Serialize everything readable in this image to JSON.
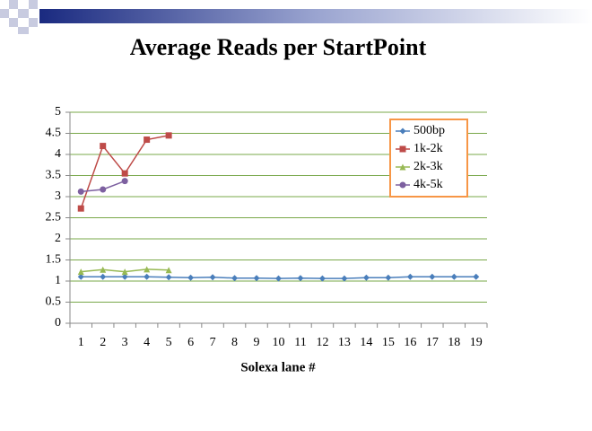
{
  "chart_data": {
    "type": "line",
    "title": "Average Reads per StartPoint",
    "x_label": "Solexa lane #",
    "categories": [
      1,
      2,
      3,
      4,
      5,
      6,
      7,
      8,
      9,
      10,
      11,
      12,
      13,
      14,
      15,
      16,
      17,
      18,
      19
    ],
    "ylim": [
      0,
      5
    ],
    "yticks": [
      0,
      0.5,
      1,
      1.5,
      2,
      2.5,
      3,
      3.5,
      4,
      4.5,
      5
    ],
    "grid": true,
    "legend": "upper right",
    "series": [
      {
        "name": "500bp",
        "color": "#4a7ebb",
        "marker": "diamond",
        "values": [
          1.1,
          1.1,
          1.1,
          1.1,
          1.09,
          1.08,
          1.09,
          1.07,
          1.07,
          1.06,
          1.07,
          1.06,
          1.06,
          1.08,
          1.08,
          1.1,
          1.1,
          1.1,
          1.1
        ]
      },
      {
        "name": "1k-2k",
        "color": "#be4b48",
        "marker": "square",
        "values": [
          2.72,
          4.2,
          3.55,
          4.35,
          4.45,
          null,
          null,
          null,
          null,
          null,
          null,
          null,
          null,
          null,
          null,
          null,
          null,
          null,
          null
        ]
      },
      {
        "name": "2k-3k",
        "color": "#98b954",
        "marker": "triangle",
        "values": [
          1.22,
          1.27,
          1.22,
          1.28,
          1.26,
          null,
          null,
          null,
          null,
          null,
          null,
          null,
          null,
          null,
          null,
          null,
          null,
          null,
          null
        ]
      },
      {
        "name": "4k-5k",
        "color": "#7d60a0",
        "marker": "circle",
        "values": [
          3.12,
          3.17,
          3.37,
          null,
          null,
          null,
          null,
          null,
          null,
          null,
          null,
          null,
          null,
          null,
          null,
          null,
          null,
          null,
          null
        ]
      }
    ]
  }
}
